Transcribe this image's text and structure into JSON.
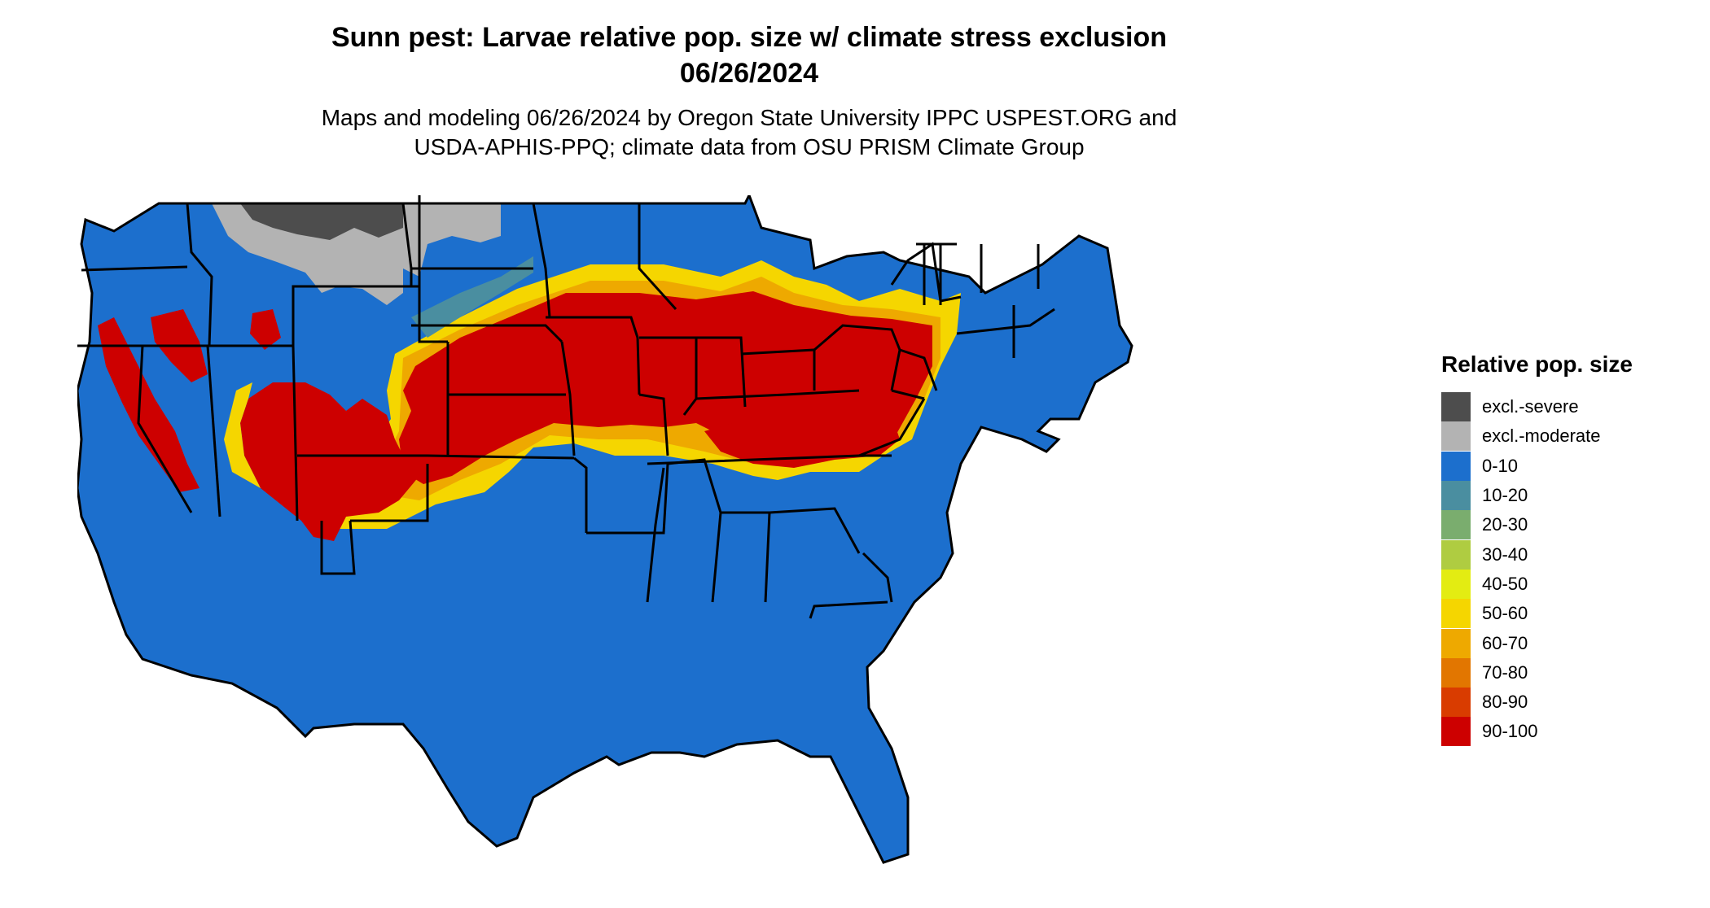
{
  "title_line1": "Sunn pest: Larvae relative pop. size w/ climate stress exclusion",
  "title_line2": "06/26/2024",
  "subtitle_line1": "Maps and modeling 06/26/2024 by Oregon State University IPPC USPEST.ORG and",
  "subtitle_line2": "USDA-APHIS-PPQ; climate data from OSU PRISM Climate Group",
  "legend": {
    "title": "Relative pop. size",
    "items": [
      {
        "label": "excl.-severe",
        "color": "#4d4d4d"
      },
      {
        "label": "excl.-moderate",
        "color": "#b3b3b3"
      },
      {
        "label": "0-10",
        "color": "#1c6fcd"
      },
      {
        "label": "10-20",
        "color": "#4a8ea0"
      },
      {
        "label": "20-30",
        "color": "#7aad6e"
      },
      {
        "label": "30-40",
        "color": "#afcc41"
      },
      {
        "label": "40-50",
        "color": "#e3ec12"
      },
      {
        "label": "50-60",
        "color": "#f5d600"
      },
      {
        "label": "60-70",
        "color": "#eea900"
      },
      {
        "label": "70-80",
        "color": "#e27600"
      },
      {
        "label": "80-90",
        "color": "#d93c00"
      },
      {
        "label": "90-100",
        "color": "#cd0000"
      }
    ]
  }
}
